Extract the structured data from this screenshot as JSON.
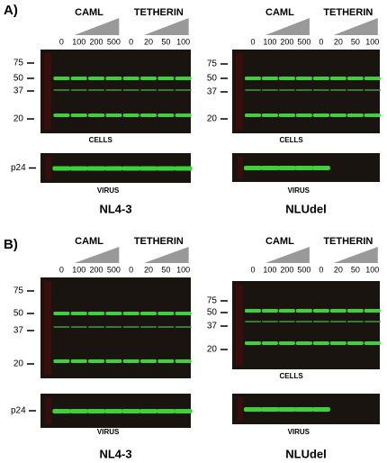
{
  "panels": [
    {
      "label": "A)",
      "blots": [
        {
          "groups": [
            "CAML",
            "TETHERIN"
          ],
          "lanes": [
            "0",
            "100",
            "200",
            "500",
            "0",
            "20",
            "50",
            "100"
          ],
          "markers": [
            "75",
            "50",
            "37",
            "20"
          ],
          "cells_label": "CELLS",
          "p24_label": "p24",
          "virus_label": "VIRUS",
          "name": "NL4-3"
        },
        {
          "groups": [
            "CAML",
            "TETHERIN"
          ],
          "lanes": [
            "0",
            "100",
            "200",
            "500",
            "0",
            "20",
            "50",
            "100"
          ],
          "markers": [
            "75",
            "50",
            "37",
            "20"
          ],
          "cells_label": "CELLS",
          "virus_label": "VIRUS",
          "name": "NLUdel"
        }
      ]
    },
    {
      "label": "B)",
      "blots": [
        {
          "groups": [
            "CAML",
            "TETHERIN"
          ],
          "lanes": [
            "0",
            "100",
            "200",
            "500",
            "0",
            "20",
            "50",
            "100"
          ],
          "markers": [
            "75",
            "50",
            "37",
            "20"
          ],
          "p24_label": "p24",
          "virus_label": "VIRUS",
          "name": "NL4-3"
        },
        {
          "groups": [
            "CAML",
            "TETHERIN"
          ],
          "lanes": [
            "0",
            "100",
            "200",
            "500",
            "0",
            "20",
            "50",
            "100"
          ],
          "markers": [
            "75",
            "50",
            "37",
            "20"
          ],
          "cells_label": "CELLS",
          "virus_label": "VIRUS",
          "name": "NLUdel"
        }
      ]
    }
  ]
}
